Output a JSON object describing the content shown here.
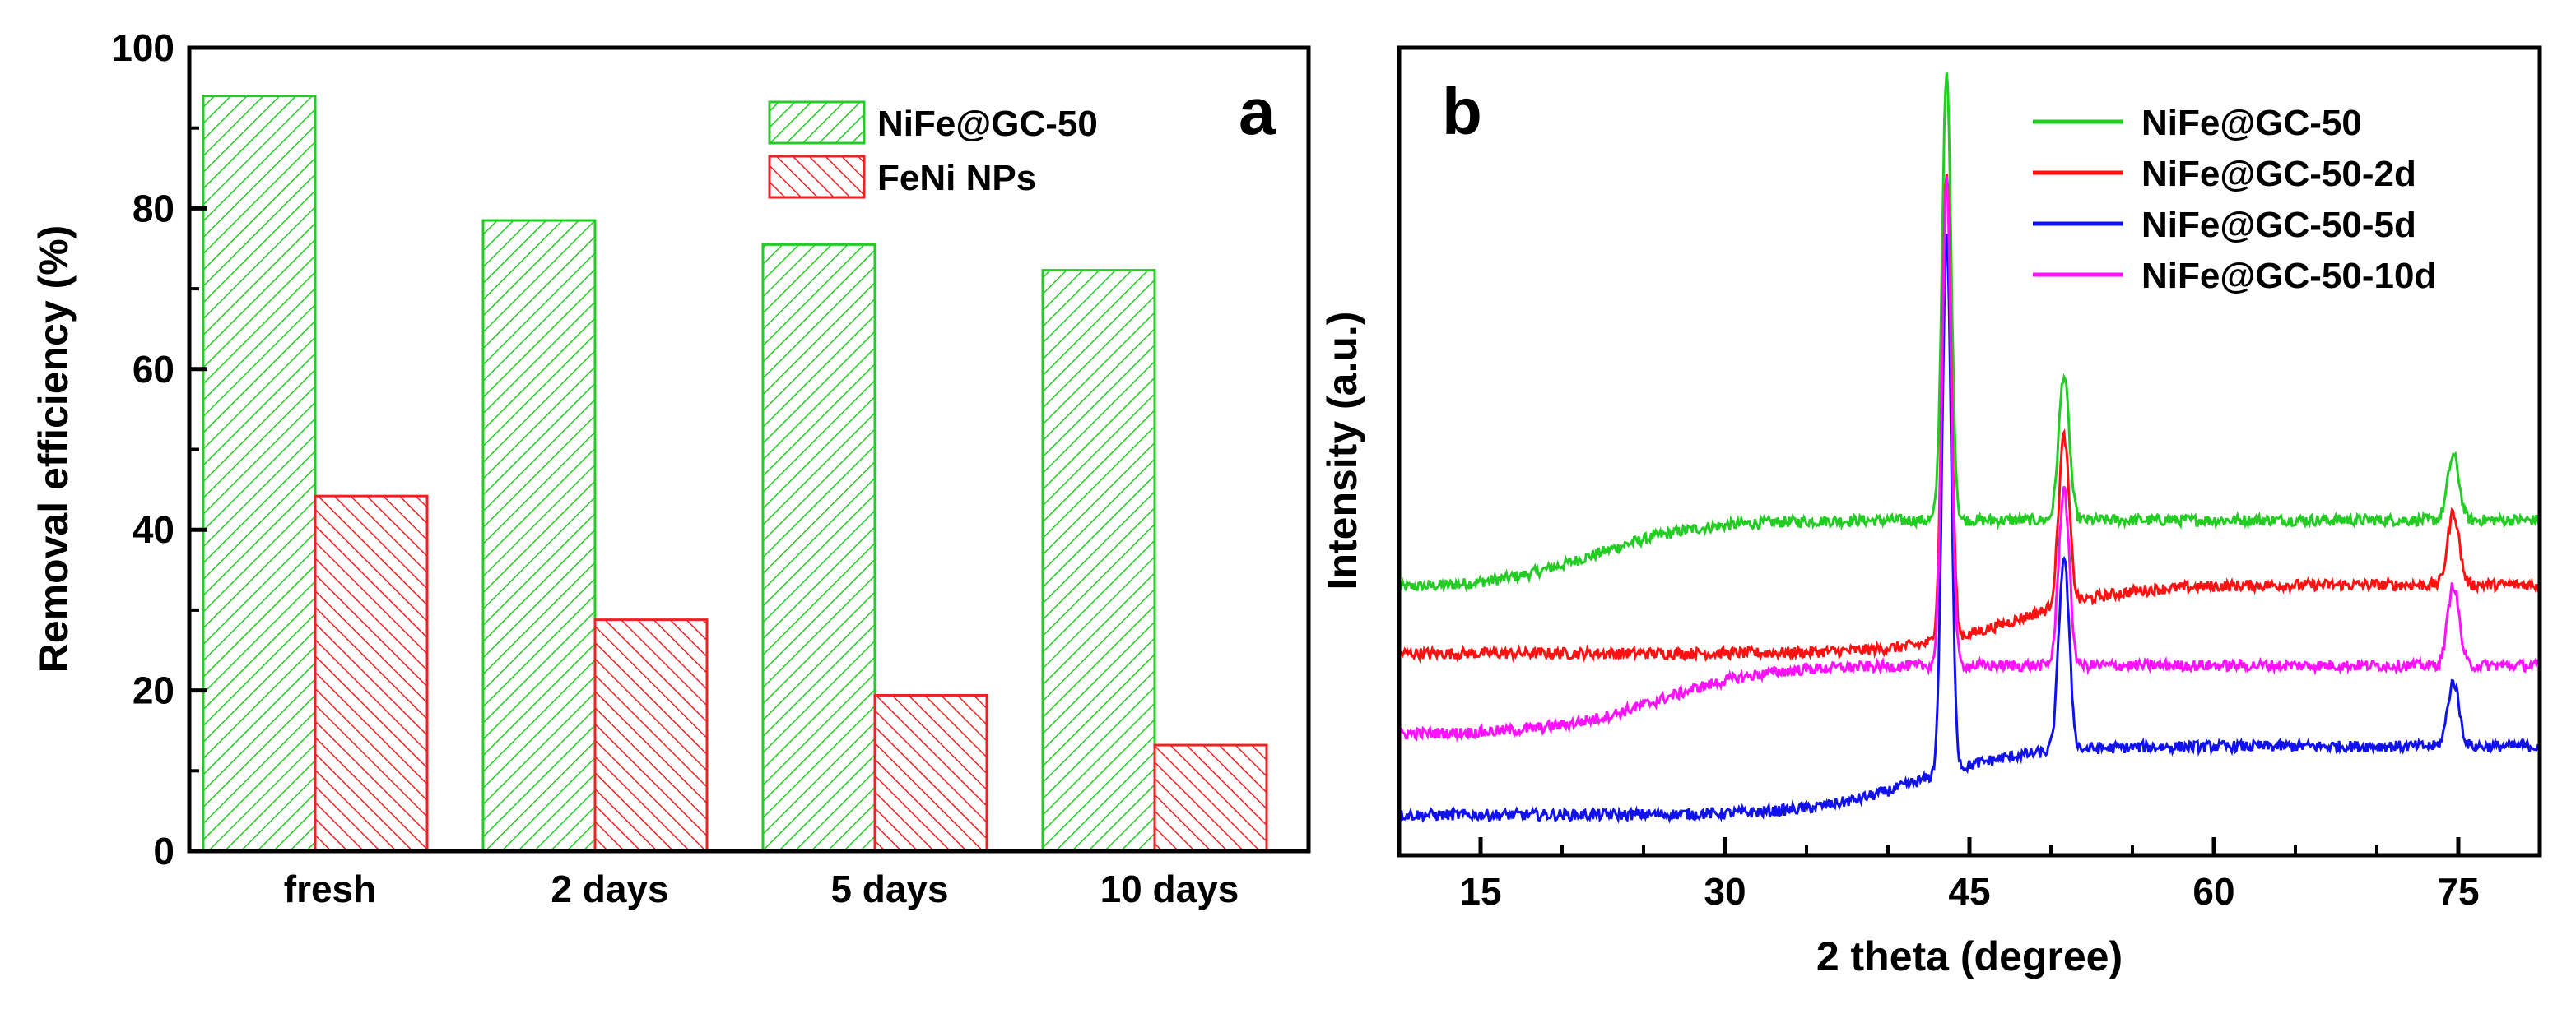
{
  "chart_data": [
    {
      "type": "bar",
      "panel_label": "a",
      "title": "",
      "categories": [
        "fresh",
        "2 days",
        "5 days",
        "10 days"
      ],
      "series": [
        {
          "name": "NiFe@GC-50",
          "color": "#22cc22",
          "values": [
            94,
            78.5,
            75.5,
            72.3
          ]
        },
        {
          "name": "FeNi NPs",
          "color": "#ee2222",
          "values": [
            44.2,
            28.8,
            19.4,
            13.2
          ]
        }
      ],
      "xlabel": "",
      "ylabel": "Removal efficiency (%)",
      "ylim": [
        0,
        100
      ],
      "yticks": [
        "0",
        "20",
        "40",
        "60",
        "80",
        "100"
      ],
      "legend_position": "top-right"
    },
    {
      "type": "line",
      "panel_label": "b",
      "title": "",
      "xlabel": "2 theta (degree)",
      "ylabel": "Intensity (a.u.)",
      "xlim": [
        10,
        80
      ],
      "xticks": [
        "15",
        "30",
        "45",
        "60",
        "75"
      ],
      "yticks_shown": false,
      "legend_position": "top-right",
      "peaks_2theta": [
        43.6,
        50.8,
        74.7
      ],
      "series": [
        {
          "name": "NiFe@GC-50",
          "color": "#22cc22",
          "baseline": 41.5,
          "start_value": 33,
          "hump_center": 22,
          "peak_heights": [
            55,
            18,
            8
          ]
        },
        {
          "name": "NiFe@GC-50-2d",
          "color": "#ff1111",
          "baseline": 33.5,
          "start_value": 25,
          "hump_center": 48,
          "peak_heights": [
            58,
            21,
            9
          ]
        },
        {
          "name": "NiFe@GC-50-5d",
          "color": "#1111ee",
          "baseline": 13.5,
          "start_value": 5,
          "hump_center": 42,
          "peak_heights": [
            66,
            24,
            8
          ]
        },
        {
          "name": "NiFe@GC-50-10d",
          "color": "#ff11ff",
          "baseline": 23.5,
          "start_value": 15,
          "hump_center": 26,
          "peak_heights": [
            60,
            22,
            10
          ]
        }
      ],
      "ylim": [
        0,
        100
      ]
    }
  ]
}
